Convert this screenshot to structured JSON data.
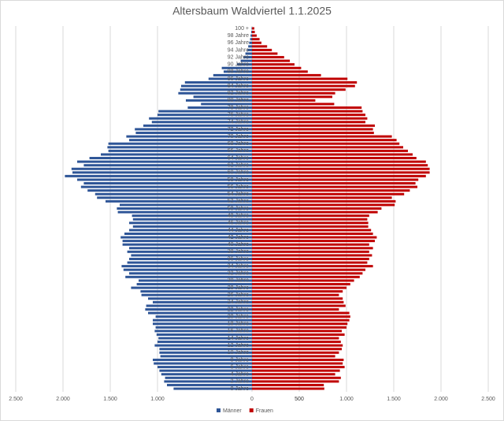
{
  "chart_data": {
    "type": "pyramid",
    "title": "Altersbaum Waldviertel 1.1.2025",
    "categories": [
      "0 Jahre",
      null,
      "2 Jahre",
      null,
      "4 Jahre",
      null,
      "6 Jahre",
      null,
      "8 Jahre",
      null,
      "10 Jahre",
      null,
      "12 Jahre",
      null,
      "14 Jahre",
      null,
      "16 Jahre",
      null,
      "18 Jahre",
      null,
      "20 Jahre",
      null,
      "22 Jahre",
      null,
      "24 Jahre",
      null,
      "26 Jahre",
      null,
      "28 Jahre",
      null,
      "30 Jahre",
      null,
      "32 Jahre",
      null,
      "34 Jahre",
      null,
      "36 Jahre",
      null,
      "38 Jahre",
      null,
      "40 Jahre",
      null,
      "42 Jahre",
      null,
      "44 Jahre",
      null,
      "46 Jahre",
      null,
      "48 Jahre",
      null,
      "50 Jahre",
      null,
      "52 Jahre",
      null,
      "54 Jahre",
      null,
      "56 Jahre",
      null,
      "58 Jahre",
      null,
      "60 Jahre",
      null,
      "62 Jahre",
      null,
      "64 Jahre",
      null,
      "66 Jahre",
      null,
      "68 Jahre",
      null,
      "70 Jahre",
      null,
      "72 Jahre",
      null,
      "74 Jahre",
      null,
      "76 Jahre",
      null,
      "78 Jahre",
      null,
      "80 Jahre",
      null,
      "82 Jahre",
      null,
      "84 Jahre",
      null,
      "86 Jahre",
      null,
      "88 Jahre",
      null,
      "90 Jahre",
      null,
      "92 Jahre",
      null,
      "94 Jahre",
      null,
      "96 Jahre",
      null,
      "98 Jahre",
      null,
      "100 +"
    ],
    "series": [
      {
        "name": "Männer",
        "color": "#2e5597",
        "values": [
          -830,
          -900,
          -930,
          -920,
          -960,
          -980,
          -1000,
          -1040,
          -1050,
          -970,
          -980,
          -980,
          -1030,
          -1000,
          -990,
          -1010,
          -1030,
          -1020,
          -1050,
          -1050,
          -1020,
          -1100,
          -1130,
          -1120,
          -1050,
          -1100,
          -1170,
          -1180,
          -1280,
          -1220,
          -1200,
          -1340,
          -1300,
          -1360,
          -1380,
          -1320,
          -1300,
          -1280,
          -1320,
          -1300,
          -1370,
          -1370,
          -1390,
          -1350,
          -1300,
          -1260,
          -1300,
          -1260,
          -1270,
          -1420,
          -1430,
          -1400,
          -1550,
          -1640,
          -1660,
          -1740,
          -1810,
          -1780,
          -1850,
          -1980,
          -1900,
          -1910,
          -1780,
          -1850,
          -1720,
          -1600,
          -1520,
          -1530,
          -1520,
          -1300,
          -1330,
          -1230,
          -1240,
          -1150,
          -1060,
          -1090,
          -1000,
          -990,
          -680,
          -540,
          -700,
          -620,
          -780,
          -760,
          -750,
          -710,
          -460,
          -410,
          -300,
          -320,
          -160,
          -120,
          -90,
          -70,
          -50,
          -40,
          -30,
          -20,
          -15,
          -8,
          -5
        ]
      },
      {
        "name": "Frauen",
        "color": "#c00000",
        "values": [
          765,
          760,
          920,
          940,
          880,
          930,
          980,
          960,
          970,
          880,
          920,
          950,
          960,
          940,
          920,
          980,
          950,
          1000,
          1010,
          1030,
          1040,
          1030,
          920,
          990,
          970,
          960,
          920,
          960,
          1000,
          1040,
          1080,
          1140,
          1170,
          1200,
          1280,
          1220,
          1240,
          1270,
          1240,
          1280,
          1240,
          1300,
          1320,
          1280,
          1260,
          1230,
          1230,
          1220,
          1240,
          1330,
          1370,
          1510,
          1520,
          1480,
          1610,
          1670,
          1750,
          1730,
          1760,
          1840,
          1880,
          1880,
          1860,
          1840,
          1740,
          1700,
          1650,
          1600,
          1560,
          1530,
          1480,
          1290,
          1280,
          1300,
          1200,
          1220,
          1200,
          1170,
          1160,
          870,
          670,
          850,
          880,
          990,
          1090,
          1110,
          1010,
          730,
          590,
          520,
          450,
          400,
          340,
          270,
          210,
          160,
          100,
          80,
          50,
          30,
          25
        ]
      }
    ],
    "xlim": [
      -2500,
      2500
    ],
    "xticks": [
      {
        "value": -2500,
        "label": "2.500"
      },
      {
        "value": -2000,
        "label": "2.000"
      },
      {
        "value": -1500,
        "label": "1.500"
      },
      {
        "value": -1000,
        "label": "1.000"
      },
      500,
      0,
      500,
      {
        "value": 1000,
        "label": "1.000"
      },
      {
        "value": 1500,
        "label": "1.500"
      },
      {
        "value": 2000,
        "label": "2.000"
      },
      {
        "value": 2500,
        "label": "2.500"
      }
    ],
    "grid": true,
    "legend": "bottom"
  }
}
